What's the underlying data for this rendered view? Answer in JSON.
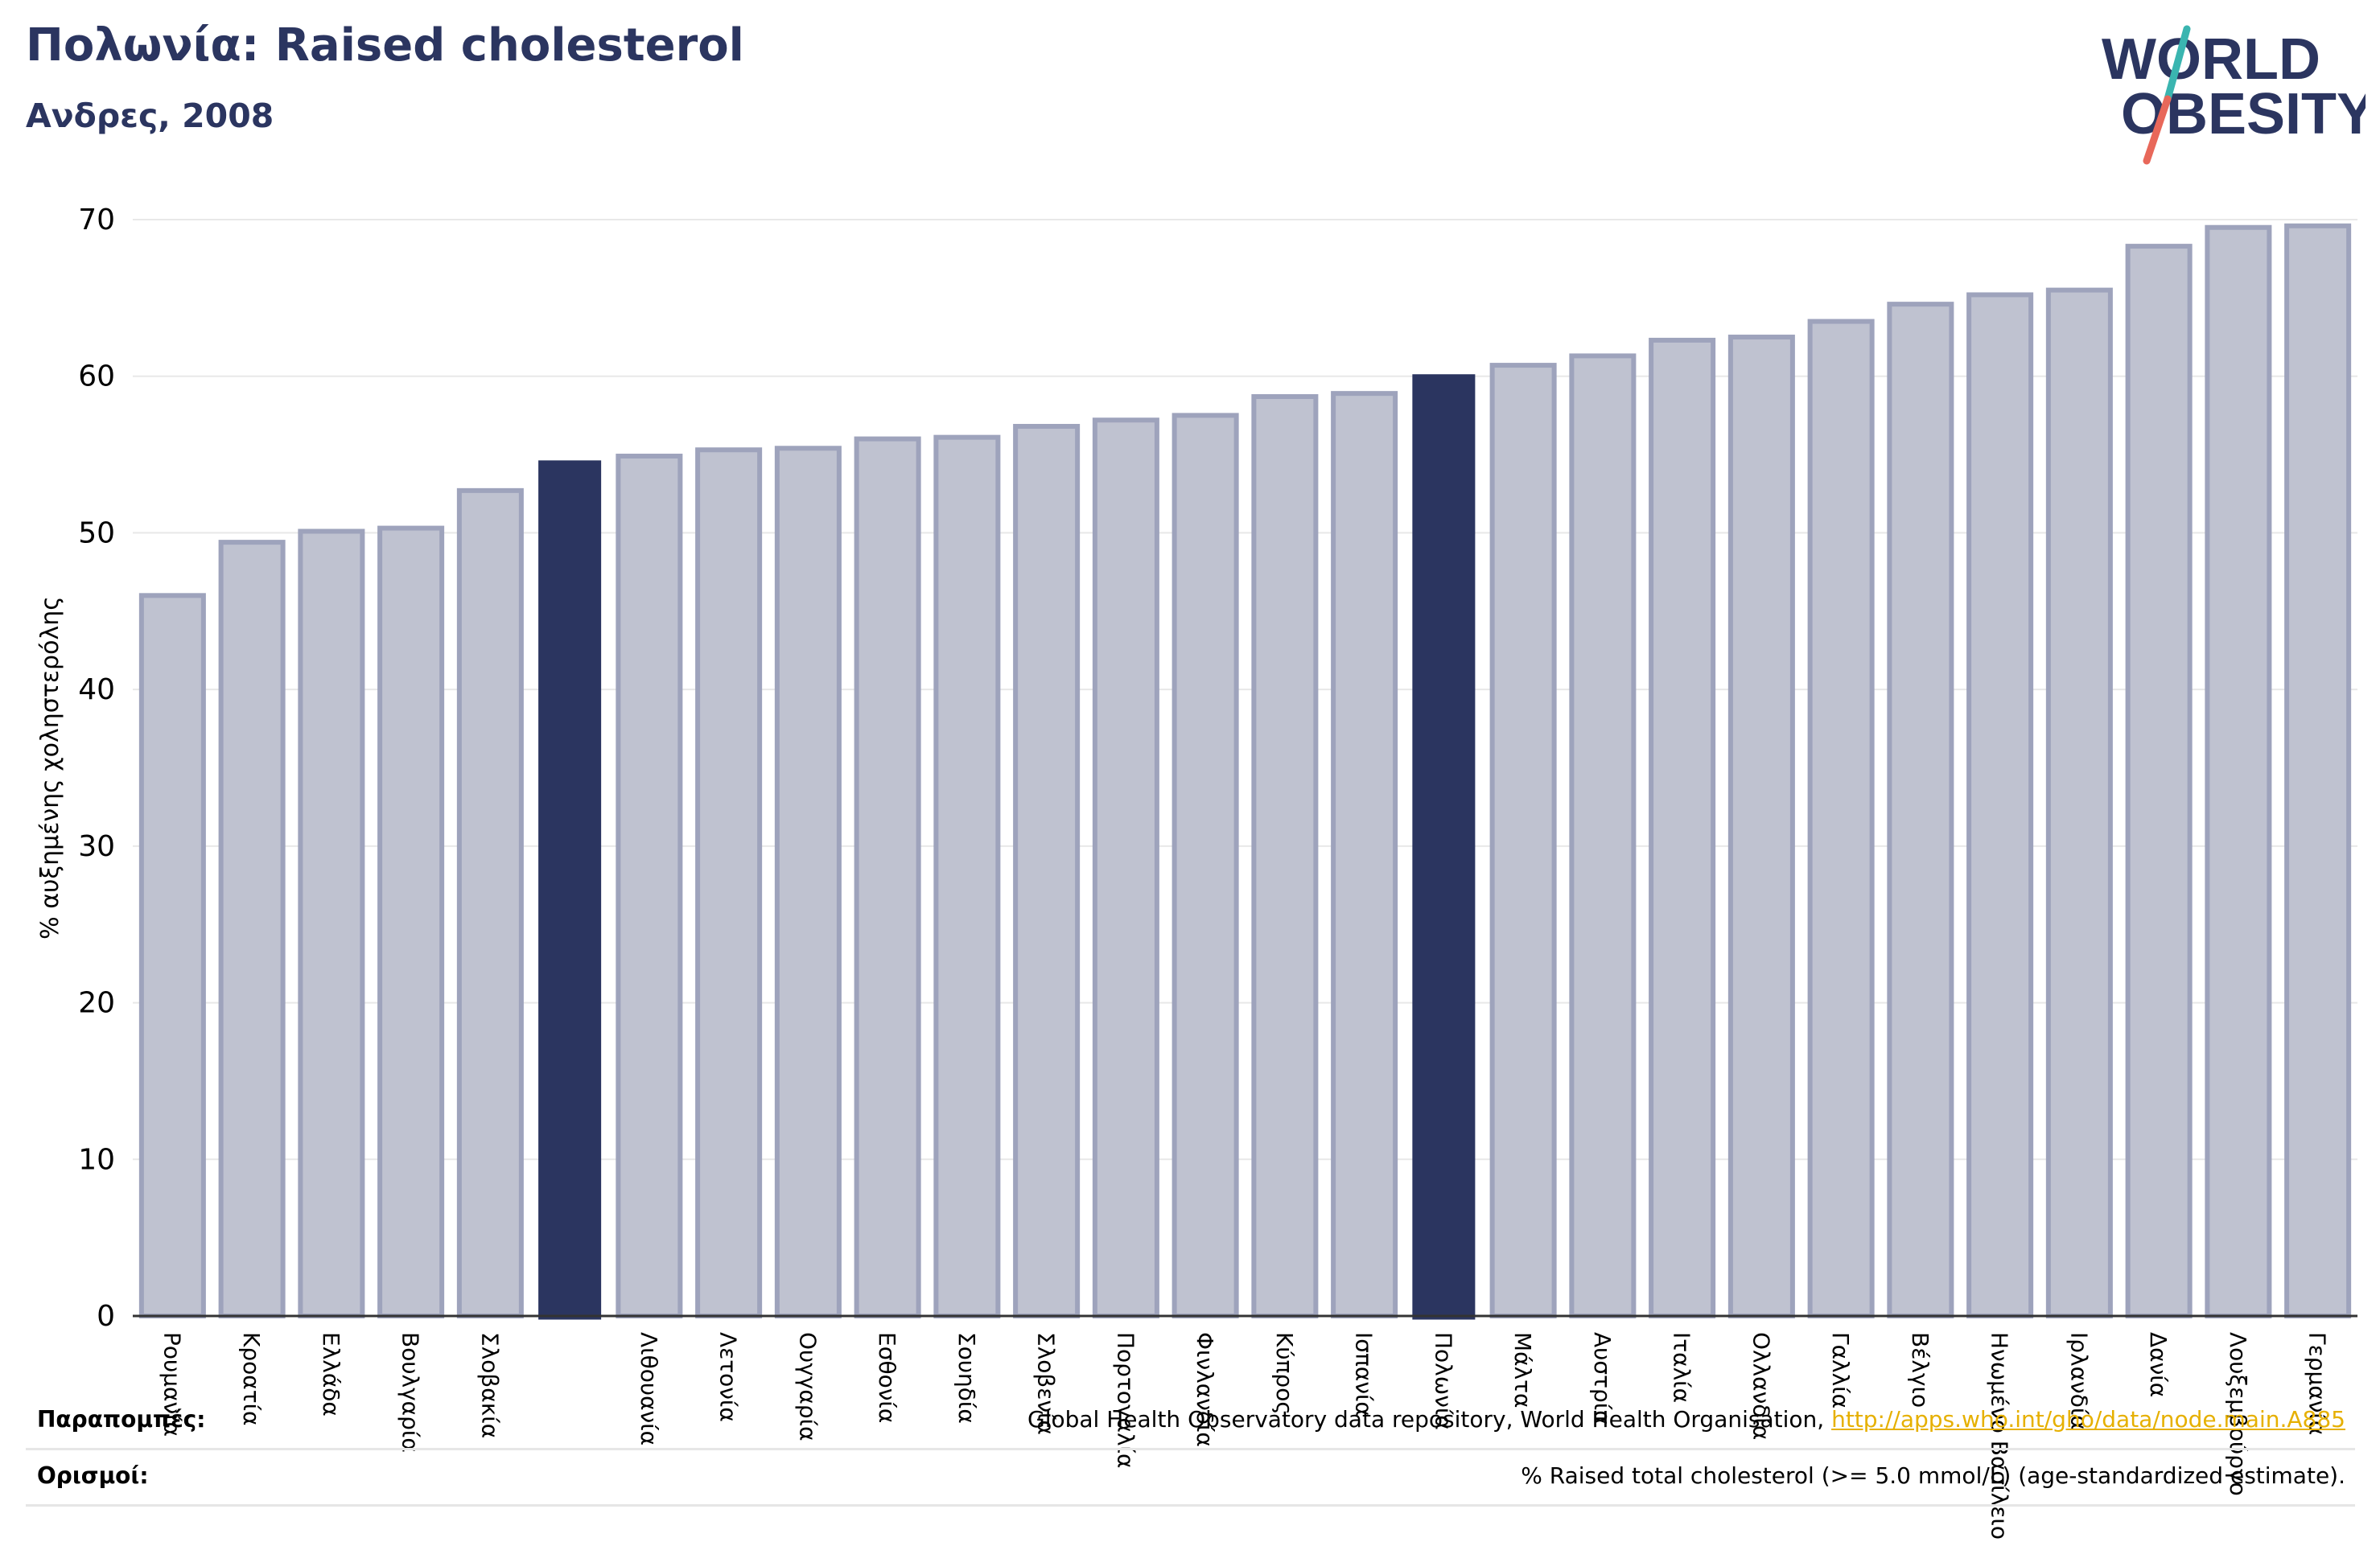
{
  "header": {
    "title": "Πολωνία: Raised cholesterol",
    "subtitle": "Ανδρες, 2008"
  },
  "logo": {
    "line1": "WORLD",
    "line2": "OBESITY"
  },
  "footer": {
    "sources_label": "Παραπομπές:",
    "sources_text": "Global Health Observatory data repository, World Health Organisation, ",
    "sources_link": "http://apps.who.int/gho/data/node.main.A885",
    "definitions_label": "Ορισμοί:",
    "definitions_text": "% Raised total cholesterol (>= 5.0 mmol/L) (age-standardized estimate)."
  },
  "colors": {
    "highlight": "#2b3560",
    "bar_fill": "#bfc2d0",
    "bar_stroke": "#9ea3bc",
    "logo_teal": "#3ab5b0",
    "logo_coral": "#e8685a"
  },
  "chart_data": {
    "type": "bar",
    "ylabel": "% αυξημένης χοληστερόλης",
    "ylim": [
      0,
      70
    ],
    "yticks": [
      0,
      10,
      20,
      30,
      40,
      50,
      60,
      70
    ],
    "grid": true,
    "categories": [
      "Ρουμανία",
      "Κροατία",
      "Ελλάδα",
      "Βουλγαρία",
      "Σλοβακία",
      "",
      "Λιθουανία",
      "Λετονία",
      "Ουγγαρία",
      "Εσθονία",
      "Σουηδία",
      "Σλοβενία",
      "Πορτογαλία",
      "Φινλανδία",
      "Κύπρος",
      "Ισπανία",
      "Πολωνία",
      "Μάλτα",
      "Αυστρία",
      "Ιταλία",
      "Ολλανδία",
      "Γαλλία",
      "Βέλγιο",
      "Ηνωμένο Βασίλειο",
      "Ιρλανδία",
      "Δανία",
      "Λουξεμβούργο",
      "Γερμανία"
    ],
    "values": [
      46.0,
      49.4,
      50.1,
      50.3,
      52.7,
      54.6,
      54.9,
      55.3,
      55.4,
      56.0,
      56.1,
      56.8,
      57.2,
      57.5,
      58.7,
      58.9,
      60.1,
      60.7,
      61.3,
      62.3,
      62.5,
      63.5,
      64.6,
      65.2,
      65.5,
      68.3,
      69.5,
      69.6
    ],
    "highlighted": [
      5,
      16
    ]
  }
}
